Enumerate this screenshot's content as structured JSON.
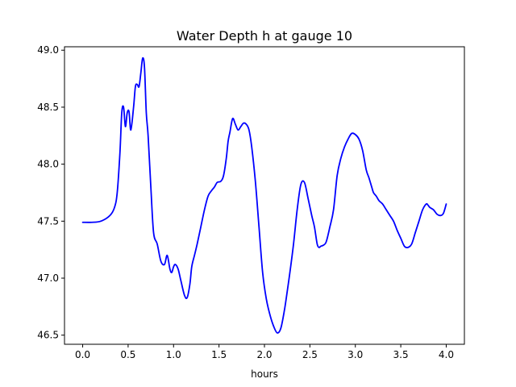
{
  "chart_data": {
    "type": "line",
    "title": "Water Depth h at gauge 10",
    "xlabel": "hours",
    "ylabel": "",
    "xlim": [
      -0.2,
      4.2
    ],
    "ylim": [
      46.42,
      49.03
    ],
    "xticks": [
      0.0,
      0.5,
      1.0,
      1.5,
      2.0,
      2.5,
      3.0,
      3.5,
      4.0
    ],
    "xtick_labels": [
      "0.0",
      "0.5",
      "1.0",
      "1.5",
      "2.0",
      "2.5",
      "3.0",
      "3.5",
      "4.0"
    ],
    "yticks": [
      46.5,
      47.0,
      47.5,
      48.0,
      48.5,
      49.0
    ],
    "ytick_labels": [
      "46.5",
      "47.0",
      "47.5",
      "48.0",
      "48.5",
      "49.0"
    ],
    "grid": false,
    "colors": {
      "line": "#0000ff"
    },
    "series": [
      {
        "name": "",
        "x": [
          0.0,
          0.1,
          0.2,
          0.3,
          0.35,
          0.38,
          0.41,
          0.43,
          0.45,
          0.47,
          0.49,
          0.51,
          0.53,
          0.56,
          0.58,
          0.6,
          0.62,
          0.64,
          0.66,
          0.68,
          0.7,
          0.72,
          0.75,
          0.78,
          0.82,
          0.86,
          0.9,
          0.93,
          0.96,
          0.98,
          1.0,
          1.02,
          1.05,
          1.08,
          1.12,
          1.15,
          1.18,
          1.2,
          1.23,
          1.26,
          1.3,
          1.34,
          1.38,
          1.42,
          1.45,
          1.48,
          1.52,
          1.55,
          1.58,
          1.6,
          1.62,
          1.65,
          1.68,
          1.71,
          1.74,
          1.77,
          1.8,
          1.83,
          1.86,
          1.9,
          1.94,
          1.98,
          2.02,
          2.06,
          2.1,
          2.14,
          2.18,
          2.22,
          2.25,
          2.28,
          2.32,
          2.36,
          2.4,
          2.44,
          2.48,
          2.52,
          2.55,
          2.58,
          2.6,
          2.62,
          2.65,
          2.68,
          2.72,
          2.76,
          2.8,
          2.84,
          2.88,
          2.92,
          2.96,
          3.0,
          3.04,
          3.08,
          3.12,
          3.15,
          3.18,
          3.2,
          3.23,
          3.26,
          3.3,
          3.34,
          3.38,
          3.42,
          3.46,
          3.5,
          3.54,
          3.58,
          3.62,
          3.66,
          3.7,
          3.74,
          3.78,
          3.8,
          3.82,
          3.86,
          3.9,
          3.94,
          3.97,
          4.0
        ],
        "y": [
          47.49,
          47.49,
          47.5,
          47.55,
          47.62,
          47.75,
          48.1,
          48.45,
          48.5,
          48.33,
          48.45,
          48.46,
          48.3,
          48.5,
          48.68,
          48.7,
          48.68,
          48.8,
          48.93,
          48.85,
          48.45,
          48.25,
          47.8,
          47.4,
          47.3,
          47.15,
          47.12,
          47.2,
          47.08,
          47.05,
          47.1,
          47.12,
          47.08,
          46.98,
          46.85,
          46.83,
          46.95,
          47.1,
          47.2,
          47.3,
          47.45,
          47.6,
          47.72,
          47.77,
          47.8,
          47.84,
          47.85,
          47.9,
          48.05,
          48.2,
          48.28,
          48.4,
          48.35,
          48.3,
          48.33,
          48.36,
          48.35,
          48.3,
          48.15,
          47.85,
          47.45,
          47.05,
          46.82,
          46.68,
          46.58,
          46.52,
          46.56,
          46.72,
          46.88,
          47.05,
          47.3,
          47.6,
          47.82,
          47.84,
          47.7,
          47.55,
          47.45,
          47.3,
          47.27,
          47.28,
          47.29,
          47.32,
          47.45,
          47.6,
          47.9,
          48.05,
          48.15,
          48.22,
          48.27,
          48.26,
          48.22,
          48.12,
          47.95,
          47.88,
          47.8,
          47.75,
          47.72,
          47.68,
          47.65,
          47.6,
          47.55,
          47.5,
          47.42,
          47.35,
          47.28,
          47.27,
          47.3,
          47.4,
          47.5,
          47.6,
          47.65,
          47.64,
          47.62,
          47.6,
          47.56,
          47.55,
          47.57,
          47.65
        ]
      }
    ]
  }
}
